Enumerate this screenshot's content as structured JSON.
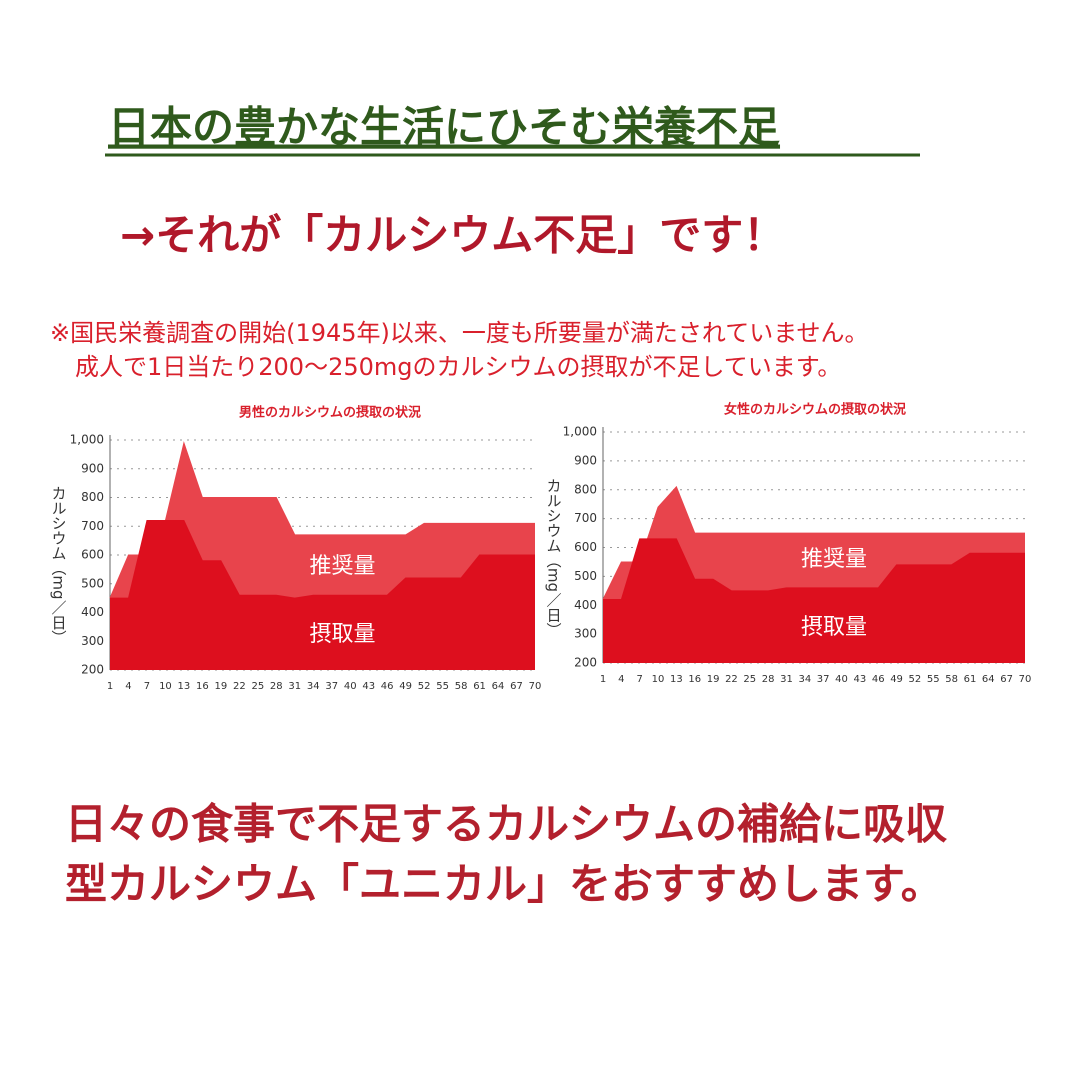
{
  "header": {
    "title": "日本の豊かな生活にひそむ栄養不足",
    "subtitle": "→それが「カルシウム不足」です！"
  },
  "note": {
    "lines": [
      "※国民栄養調査の開始(1945年)以来、一度も所要量が満たされていません。",
      "成人で1日当たり200〜250mgのカルシウムの摂取が不足しています。"
    ]
  },
  "footer": {
    "lines": [
      "日々の食事で不足するカルシウムの補給に吸収",
      "型カルシウム「ユニカル」をおすすめします。"
    ]
  },
  "chart_data": [
    {
      "type": "area",
      "title": "男性のカルシウムの摂取の状況",
      "y_label": "カルシウム（mg／日）",
      "x": [
        1,
        4,
        7,
        10,
        13,
        16,
        19,
        22,
        25,
        28,
        31,
        34,
        37,
        40,
        43,
        46,
        49,
        52,
        55,
        58,
        61,
        64,
        67,
        70
      ],
      "xlim": [
        1,
        70
      ],
      "xticks": [
        1,
        4,
        7,
        10,
        13,
        16,
        19,
        22,
        25,
        28,
        31,
        34,
        37,
        40,
        43,
        46,
        49,
        52,
        55,
        58,
        61,
        64,
        67,
        70
      ],
      "ylim": [
        200,
        1000
      ],
      "yticks": [
        200,
        300,
        400,
        500,
        600,
        700,
        800,
        900,
        {
          "value": 1000,
          "label": "1,000"
        }
      ],
      "grid": true,
      "series": [
        {
          "name": "推奨量",
          "color": "#e8444c",
          "values": [
            450,
            600,
            600,
            720,
            990,
            800,
            800,
            800,
            800,
            800,
            670,
            670,
            670,
            670,
            670,
            670,
            670,
            710,
            710,
            710,
            710,
            710,
            710,
            710
          ]
        },
        {
          "name": "摂取量",
          "color": "#dd0f1e",
          "values": [
            450,
            450,
            720,
            720,
            720,
            580,
            580,
            460,
            460,
            460,
            450,
            460,
            460,
            460,
            460,
            460,
            520,
            520,
            520,
            520,
            600,
            600,
            600,
            600
          ]
        }
      ]
    },
    {
      "type": "area",
      "title": "女性のカルシウムの摂取の状況",
      "y_label": "カルシウム（mg／日）",
      "x": [
        1,
        4,
        7,
        10,
        13,
        16,
        19,
        22,
        25,
        28,
        31,
        34,
        37,
        40,
        43,
        46,
        49,
        52,
        55,
        58,
        61,
        64,
        67,
        70
      ],
      "xlim": [
        1,
        70
      ],
      "xticks": [
        1,
        4,
        7,
        10,
        13,
        16,
        19,
        22,
        25,
        28,
        31,
        34,
        37,
        40,
        43,
        46,
        49,
        52,
        55,
        58,
        61,
        64,
        67,
        70
      ],
      "ylim": [
        200,
        1000
      ],
      "yticks": [
        200,
        300,
        400,
        500,
        600,
        700,
        800,
        900,
        {
          "value": 1000,
          "label": "1,000"
        }
      ],
      "grid": true,
      "series": [
        {
          "name": "推奨量",
          "color": "#e8444c",
          "values": [
            420,
            550,
            550,
            740,
            810,
            650,
            650,
            650,
            650,
            650,
            650,
            650,
            650,
            650,
            650,
            650,
            650,
            650,
            650,
            650,
            650,
            650,
            650,
            650
          ]
        },
        {
          "name": "摂取量",
          "color": "#dd0f1e",
          "values": [
            420,
            420,
            630,
            630,
            630,
            490,
            490,
            450,
            450,
            450,
            460,
            460,
            460,
            460,
            460,
            460,
            540,
            540,
            540,
            540,
            580,
            580,
            580,
            580
          ]
        }
      ]
    }
  ]
}
